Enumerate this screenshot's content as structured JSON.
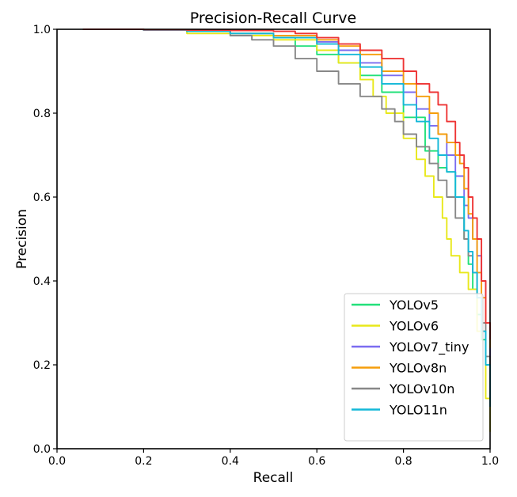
{
  "chart_data": {
    "type": "line",
    "title": "Precision-Recall Curve",
    "xlabel": "Recall",
    "ylabel": "Precision",
    "xlim": [
      0.0,
      1.0
    ],
    "ylim": [
      0.0,
      1.0
    ],
    "xticks": [
      "0.0",
      "0.2",
      "0.4",
      "0.6",
      "0.8",
      "1.0"
    ],
    "yticks": [
      "0.0",
      "0.2",
      "0.4",
      "0.6",
      "0.8",
      "1.0"
    ],
    "legend_position": "bottom-right",
    "grid": false,
    "series": [
      {
        "name": "YOLOv5",
        "color": "#22e07a",
        "in_legend": true,
        "x": [
          0.06,
          0.2,
          0.3,
          0.4,
          0.5,
          0.55,
          0.6,
          0.65,
          0.7,
          0.75,
          0.8,
          0.85,
          0.88,
          0.9,
          0.92,
          0.94,
          0.95,
          0.96,
          0.97,
          0.98,
          0.99,
          1.0
        ],
        "y": [
          1.0,
          0.998,
          0.995,
          0.99,
          0.98,
          0.96,
          0.94,
          0.92,
          0.89,
          0.85,
          0.79,
          0.71,
          0.67,
          0.66,
          0.6,
          0.5,
          0.44,
          0.38,
          0.32,
          0.26,
          0.2,
          0.1
        ]
      },
      {
        "name": "YOLOv6",
        "color": "#e8e81a",
        "in_legend": true,
        "x": [
          0.06,
          0.2,
          0.3,
          0.4,
          0.5,
          0.6,
          0.65,
          0.7,
          0.73,
          0.76,
          0.8,
          0.83,
          0.85,
          0.87,
          0.89,
          0.9,
          0.91,
          0.93,
          0.95,
          0.97,
          0.99,
          1.0
        ],
        "y": [
          1.0,
          0.998,
          0.99,
          0.985,
          0.975,
          0.95,
          0.92,
          0.88,
          0.84,
          0.8,
          0.74,
          0.69,
          0.65,
          0.6,
          0.55,
          0.5,
          0.46,
          0.42,
          0.38,
          0.28,
          0.12,
          0.04
        ]
      },
      {
        "name": "YOLOv7_tiny",
        "color": "#7b6cf0",
        "in_legend": true,
        "x": [
          0.06,
          0.2,
          0.3,
          0.4,
          0.5,
          0.6,
          0.65,
          0.7,
          0.75,
          0.8,
          0.83,
          0.86,
          0.88,
          0.9,
          0.92,
          0.94,
          0.95,
          0.96,
          0.97,
          0.98,
          0.99,
          1.0
        ],
        "y": [
          1.0,
          0.998,
          0.995,
          0.99,
          0.985,
          0.97,
          0.95,
          0.92,
          0.89,
          0.85,
          0.81,
          0.77,
          0.75,
          0.7,
          0.65,
          0.58,
          0.55,
          0.5,
          0.46,
          0.4,
          0.3,
          0.18
        ]
      },
      {
        "name": "YOLOv8n",
        "color": "#f59e0b",
        "in_legend": true,
        "x": [
          0.06,
          0.2,
          0.3,
          0.4,
          0.5,
          0.6,
          0.65,
          0.7,
          0.75,
          0.8,
          0.83,
          0.86,
          0.88,
          0.9,
          0.92,
          0.93,
          0.94,
          0.95,
          0.96,
          0.97,
          0.98,
          0.99,
          1.0
        ],
        "y": [
          1.0,
          0.998,
          0.995,
          0.99,
          0.985,
          0.975,
          0.96,
          0.94,
          0.9,
          0.87,
          0.84,
          0.8,
          0.75,
          0.73,
          0.7,
          0.68,
          0.62,
          0.56,
          0.5,
          0.42,
          0.36,
          0.3,
          0.24
        ]
      },
      {
        "name": "YOLOv10n",
        "color": "#888888",
        "in_legend": true,
        "x": [
          0.06,
          0.2,
          0.3,
          0.4,
          0.45,
          0.5,
          0.55,
          0.6,
          0.65,
          0.7,
          0.75,
          0.78,
          0.8,
          0.83,
          0.86,
          0.88,
          0.9,
          0.92,
          0.94,
          0.95,
          0.96,
          0.97,
          0.98,
          0.99,
          1.0
        ],
        "y": [
          1.0,
          0.998,
          0.995,
          0.985,
          0.975,
          0.96,
          0.93,
          0.9,
          0.87,
          0.84,
          0.81,
          0.78,
          0.75,
          0.72,
          0.68,
          0.64,
          0.6,
          0.55,
          0.5,
          0.46,
          0.42,
          0.36,
          0.3,
          0.22,
          0.12
        ]
      },
      {
        "name": "YOLO11n",
        "color": "#14b8d8",
        "in_legend": true,
        "x": [
          0.06,
          0.2,
          0.3,
          0.4,
          0.5,
          0.6,
          0.65,
          0.7,
          0.75,
          0.8,
          0.83,
          0.86,
          0.88,
          0.9,
          0.92,
          0.94,
          0.95,
          0.96,
          0.97,
          0.98,
          0.99,
          1.0
        ],
        "y": [
          1.0,
          0.998,
          0.995,
          0.99,
          0.98,
          0.965,
          0.94,
          0.91,
          0.87,
          0.82,
          0.78,
          0.74,
          0.7,
          0.66,
          0.6,
          0.52,
          0.47,
          0.42,
          0.36,
          0.28,
          0.2,
          0.1
        ]
      },
      {
        "name": "",
        "color": "#ee3535",
        "in_legend": false,
        "x": [
          0.06,
          0.2,
          0.3,
          0.4,
          0.5,
          0.55,
          0.6,
          0.65,
          0.7,
          0.75,
          0.8,
          0.83,
          0.86,
          0.88,
          0.9,
          0.92,
          0.93,
          0.94,
          0.95,
          0.96,
          0.97,
          0.98,
          0.99,
          1.0
        ],
        "y": [
          1.0,
          0.999,
          0.998,
          0.997,
          0.995,
          0.99,
          0.98,
          0.965,
          0.95,
          0.93,
          0.9,
          0.87,
          0.85,
          0.82,
          0.78,
          0.73,
          0.7,
          0.67,
          0.6,
          0.55,
          0.5,
          0.4,
          0.3,
          0.26
        ]
      }
    ]
  }
}
